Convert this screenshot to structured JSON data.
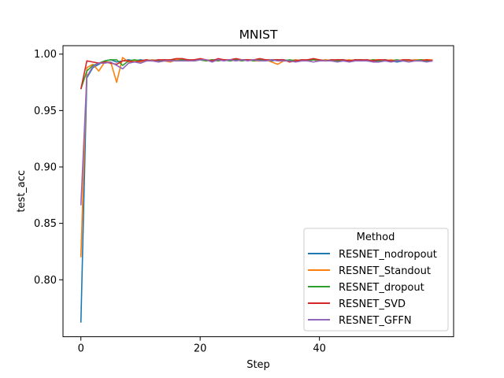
{
  "chart_data": {
    "type": "line",
    "title": "MNIST",
    "xlabel": "Step",
    "ylabel": "test_acc",
    "xlim": [
      -3,
      62.5
    ],
    "ylim": [
      0.7495,
      1.0075
    ],
    "xticks": [
      0,
      20,
      40
    ],
    "yticks": [
      0.8,
      0.85,
      0.9,
      0.95,
      1.0
    ],
    "ytick_labels": [
      "0.80",
      "0.85",
      "0.90",
      "0.95",
      "1.00"
    ],
    "grid": false,
    "legend": {
      "title": "Method",
      "placement": "lower right"
    },
    "x": [
      0,
      1,
      2,
      3,
      4,
      5,
      6,
      7,
      8,
      9,
      10,
      11,
      12,
      13,
      14,
      15,
      16,
      17,
      18,
      19,
      20,
      21,
      22,
      23,
      24,
      25,
      26,
      27,
      28,
      29,
      30,
      31,
      32,
      33,
      34,
      35,
      36,
      37,
      38,
      39,
      40,
      41,
      42,
      43,
      44,
      45,
      46,
      47,
      48,
      49,
      50,
      51,
      52,
      53,
      54,
      55,
      56,
      57,
      58,
      59
    ],
    "series": [
      {
        "name": "RESNET_nodropout",
        "color": "#1f77b4",
        "values": [
          0.762,
          0.979,
          0.988,
          0.991,
          0.994,
          0.995,
          0.993,
          0.994,
          0.995,
          0.994,
          0.995,
          0.994,
          0.995,
          0.994,
          0.995,
          0.994,
          0.995,
          0.995,
          0.994,
          0.995,
          0.995,
          0.994,
          0.995,
          0.995,
          0.995,
          0.994,
          0.995,
          0.995,
          0.995,
          0.994,
          0.995,
          0.995,
          0.994,
          0.995,
          0.995,
          0.994,
          0.995,
          0.994,
          0.995,
          0.995,
          0.994,
          0.995,
          0.994,
          0.995,
          0.995,
          0.994,
          0.995,
          0.994,
          0.995,
          0.994,
          0.994,
          0.995,
          0.994,
          0.993,
          0.994,
          0.994,
          0.995,
          0.994,
          0.994,
          0.994
        ]
      },
      {
        "name": "RESNET_Standout",
        "color": "#ff7f0e",
        "values": [
          0.82,
          0.988,
          0.991,
          0.985,
          0.993,
          0.993,
          0.975,
          0.997,
          0.993,
          0.994,
          0.993,
          0.994,
          0.995,
          0.993,
          0.994,
          0.993,
          0.995,
          0.996,
          0.994,
          0.995,
          0.995,
          0.994,
          0.995,
          0.994,
          0.995,
          0.994,
          0.995,
          0.994,
          0.995,
          0.994,
          0.994,
          0.995,
          0.993,
          0.991,
          0.994,
          0.994,
          0.995,
          0.994,
          0.995,
          0.995,
          0.994,
          0.995,
          0.994,
          0.995,
          0.994,
          0.995,
          0.994,
          0.995,
          0.994,
          0.995,
          0.995,
          0.994,
          0.995,
          0.994,
          0.995,
          0.994,
          0.995,
          0.995,
          0.995,
          0.995
        ]
      },
      {
        "name": "RESNET_dropout",
        "color": "#2ca02c",
        "values": [
          0.969,
          0.985,
          0.99,
          0.992,
          0.994,
          0.995,
          0.995,
          0.99,
          0.994,
          0.995,
          0.994,
          0.995,
          0.994,
          0.995,
          0.994,
          0.995,
          0.994,
          0.995,
          0.995,
          0.994,
          0.995,
          0.994,
          0.995,
          0.994,
          0.995,
          0.994,
          0.995,
          0.994,
          0.995,
          0.994,
          0.995,
          0.994,
          0.995,
          0.995,
          0.994,
          0.995,
          0.994,
          0.995,
          0.994,
          0.995,
          0.995,
          0.994,
          0.995,
          0.994,
          0.995,
          0.994,
          0.995,
          0.995,
          0.994,
          0.995,
          0.994,
          0.995,
          0.994,
          0.995,
          0.994,
          0.995,
          0.994,
          0.995,
          0.994,
          0.994
        ]
      },
      {
        "name": "RESNET_SVD",
        "color": "#d62728",
        "values": [
          0.969,
          0.994,
          0.993,
          0.992,
          0.993,
          0.992,
          0.991,
          0.994,
          0.994,
          0.993,
          0.994,
          0.995,
          0.994,
          0.995,
          0.995,
          0.995,
          0.996,
          0.996,
          0.995,
          0.995,
          0.996,
          0.995,
          0.994,
          0.996,
          0.995,
          0.995,
          0.996,
          0.995,
          0.995,
          0.995,
          0.996,
          0.995,
          0.995,
          0.995,
          0.995,
          0.993,
          0.994,
          0.995,
          0.995,
          0.996,
          0.995,
          0.994,
          0.995,
          0.995,
          0.995,
          0.994,
          0.995,
          0.995,
          0.995,
          0.994,
          0.995,
          0.995,
          0.994,
          0.994,
          0.995,
          0.995,
          0.994,
          0.994,
          0.995,
          0.994
        ]
      },
      {
        "name": "RESNET_GFFN",
        "color": "#9467bd",
        "values": [
          0.866,
          0.98,
          0.989,
          0.992,
          0.992,
          0.993,
          0.99,
          0.987,
          0.992,
          0.993,
          0.992,
          0.994,
          0.994,
          0.993,
          0.994,
          0.994,
          0.994,
          0.994,
          0.994,
          0.994,
          0.995,
          0.995,
          0.993,
          0.995,
          0.994,
          0.995,
          0.994,
          0.995,
          0.994,
          0.995,
          0.994,
          0.994,
          0.995,
          0.994,
          0.994,
          0.994,
          0.993,
          0.994,
          0.994,
          0.993,
          0.994,
          0.994,
          0.994,
          0.993,
          0.994,
          0.993,
          0.994,
          0.994,
          0.994,
          0.993,
          0.993,
          0.994,
          0.993,
          0.994,
          0.994,
          0.993,
          0.994,
          0.994,
          0.993,
          0.994
        ]
      }
    ]
  }
}
